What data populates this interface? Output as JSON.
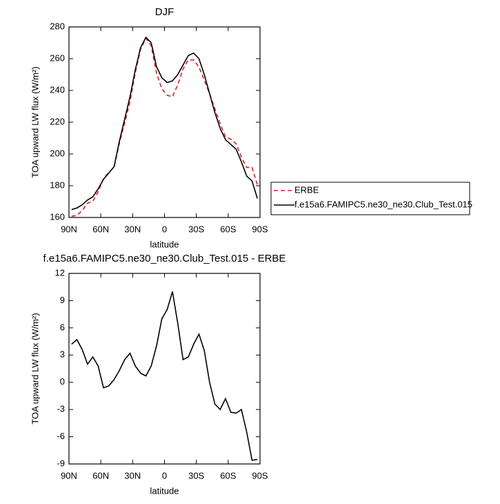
{
  "chart_data": [
    {
      "type": "line",
      "title": "DJF",
      "xlabel": "latitude",
      "ylabel": "TOA upward LW flux (W/m²)",
      "x": [
        87.5,
        82.5,
        77.5,
        72.5,
        67.5,
        62.5,
        57.5,
        52.5,
        47.5,
        42.5,
        37.5,
        32.5,
        27.5,
        22.5,
        17.5,
        12.5,
        7.5,
        2.5,
        -2.5,
        -7.5,
        -12.5,
        -17.5,
        -22.5,
        -27.5,
        -32.5,
        -37.5,
        -42.5,
        -47.5,
        -52.5,
        -57.5,
        -62.5,
        -67.5,
        -72.5,
        -77.5,
        -82.5,
        -87.5
      ],
      "xlim": [
        90,
        -90
      ],
      "xticks": [
        {
          "value": 90,
          "label": "90N"
        },
        {
          "value": 60,
          "label": "60N"
        },
        {
          "value": 30,
          "label": "30N"
        },
        0,
        {
          "value": -30,
          "label": "30S"
        },
        {
          "value": -60,
          "label": "60S"
        },
        {
          "value": -90,
          "label": "90S"
        }
      ],
      "ylim": [
        160,
        280
      ],
      "yticks": [
        160,
        180,
        200,
        220,
        240,
        260,
        280
      ],
      "legend": "right",
      "series": [
        {
          "name": "ERBE",
          "color": "#e31a1c",
          "linestyle": "dashed",
          "values": [
            160.8,
            161.3,
            164.4,
            169,
            170.2,
            176.2,
            184.6,
            188.4,
            191.7,
            206.7,
            219.5,
            232.8,
            251.2,
            266,
            272.8,
            268.2,
            251,
            241,
            237,
            236,
            243.5,
            253.5,
            259.2,
            259.3,
            254.7,
            246.5,
            238,
            228.4,
            219,
            210.8,
            209.3,
            206.4,
            198,
            191.5,
            191.6,
            180.5
          ]
        },
        {
          "name": "f.e15a6.FAMIPC5.ne30_ne30.Club_Test.015",
          "color": "#000000",
          "linestyle": "solid",
          "values": [
            165,
            166,
            168,
            171,
            173,
            178,
            184,
            188,
            192,
            208,
            222,
            236,
            253,
            267,
            273.5,
            270,
            255,
            248,
            245,
            246,
            250,
            256,
            262,
            263.5,
            260,
            250,
            238,
            226,
            216,
            209,
            206,
            203,
            195,
            186,
            183,
            172
          ]
        }
      ]
    },
    {
      "type": "line",
      "title": "f.e15a6.FAMIPC5.ne30_ne30.Club_Test.015 - ERBE",
      "xlabel": "latitude",
      "ylabel": "TOA upward LW flux (W/m²)",
      "x": [
        87.5,
        82.5,
        77.5,
        72.5,
        67.5,
        62.5,
        57.5,
        52.5,
        47.5,
        42.5,
        37.5,
        32.5,
        27.5,
        22.5,
        17.5,
        12.5,
        7.5,
        2.5,
        -2.5,
        -7.5,
        -12.5,
        -17.5,
        -22.5,
        -27.5,
        -32.5,
        -37.5,
        -42.5,
        -47.5,
        -52.5,
        -57.5,
        -62.5,
        -67.5,
        -72.5,
        -77.5,
        -82.5,
        -87.5
      ],
      "xlim": [
        90,
        -90
      ],
      "xticks": [
        {
          "value": 90,
          "label": "90N"
        },
        {
          "value": 60,
          "label": "60N"
        },
        {
          "value": 30,
          "label": "30N"
        },
        0,
        {
          "value": -30,
          "label": "30S"
        },
        {
          "value": -60,
          "label": "60S"
        },
        {
          "value": -90,
          "label": "90S"
        }
      ],
      "ylim": [
        -9,
        12
      ],
      "yticks": [
        -9,
        -6,
        -3,
        0,
        3,
        6,
        9,
        12
      ],
      "series": [
        {
          "color": "#000000",
          "linestyle": "solid",
          "values": [
            4.2,
            4.7,
            3.6,
            2.0,
            2.8,
            1.8,
            -0.6,
            -0.4,
            0.3,
            1.3,
            2.5,
            3.2,
            1.8,
            1.0,
            0.7,
            1.8,
            4.0,
            7.0,
            8.0,
            10.0,
            6.5,
            2.5,
            2.8,
            4.2,
            5.3,
            3.5,
            0.0,
            -2.4,
            -3.0,
            -1.8,
            -3.3,
            -3.4,
            -3.0,
            -5.5,
            -8.6,
            -8.5
          ]
        }
      ]
    }
  ]
}
